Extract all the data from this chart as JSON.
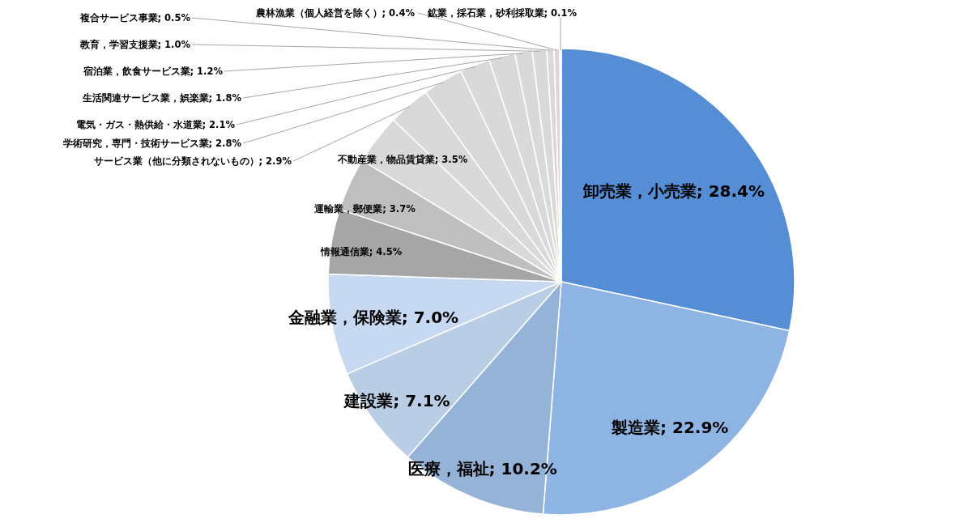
{
  "chart_data": {
    "type": "pie",
    "categories": [
      "卸売業，小売業",
      "製造業",
      "医療，福祉",
      "建設業",
      "金融業，保険業",
      "情報通信業",
      "運輸業，郵便業",
      "不動産業，物品賃貸業",
      "サービス業（他に分類されないもの）",
      "学術研究，専門・技術サービス業",
      "電気・ガス・熱供給・水道業",
      "生活関連サービス業，娯楽業",
      "宿泊業，飲食サービス業",
      "教育，学習支援業",
      "複合サービス事業",
      "農林漁業（個人経営を除く）",
      "鉱業，採石業，砂利採取業"
    ],
    "values": [
      28.4,
      22.9,
      10.2,
      7.1,
      7.0,
      4.5,
      3.7,
      3.5,
      2.9,
      2.8,
      2.1,
      1.8,
      1.2,
      1.0,
      0.5,
      0.4,
      0.1
    ],
    "value_labels": [
      "28.4%",
      "22.9%",
      "10.2%",
      "7.1%",
      "7.0%",
      "4.5%",
      "3.7%",
      "3.5%",
      "2.9%",
      "2.8%",
      "2.1%",
      "1.8%",
      "1.2%",
      "1.0%",
      "0.5%",
      "0.4%",
      "0.1%"
    ],
    "colors": [
      "#558ed5",
      "#8eb4e3",
      "#95b3d7",
      "#b9cde5",
      "#c6d9f1",
      "#a6a6a6",
      "#bfbfbf",
      "#d9d9d9",
      "#d9d9d9",
      "#d9d9d9",
      "#d9d9d9",
      "#d9d9d9",
      "#d9d9d9",
      "#d9d9d9",
      "#d9d9d9",
      "#d9d9d9",
      "#d9d9d9"
    ]
  }
}
